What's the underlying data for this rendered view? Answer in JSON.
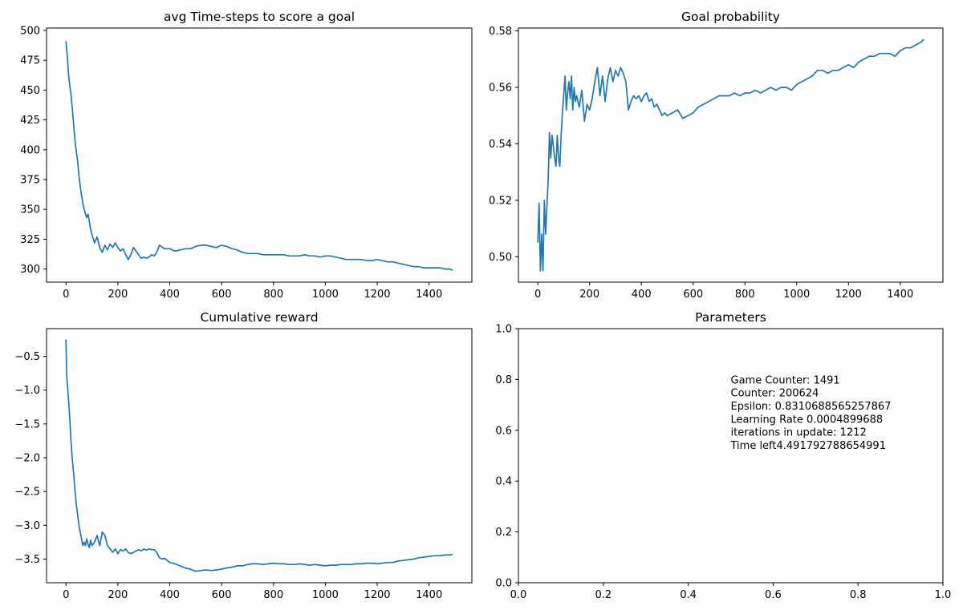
{
  "colors": {
    "series": "#1f77b4",
    "axes": "#000000",
    "background": "#ffffff"
  },
  "chart_data": [
    {
      "type": "line",
      "title": "avg Time-steps to score a goal",
      "xlabel": "",
      "ylabel": "",
      "xlim": [
        -75,
        1565
      ],
      "ylim": [
        289,
        502
      ],
      "xticks": [
        0,
        200,
        400,
        600,
        800,
        1000,
        1200,
        1400
      ],
      "yticks": [
        300,
        325,
        350,
        375,
        400,
        425,
        450,
        475,
        500
      ],
      "grid": false,
      "series": [
        {
          "x": [
            0,
            5,
            10,
            15,
            20,
            25,
            30,
            35,
            40,
            45,
            50,
            55,
            60,
            65,
            70,
            75,
            80,
            85,
            90,
            95,
            100,
            110,
            120,
            130,
            140,
            150,
            160,
            170,
            180,
            190,
            200,
            210,
            220,
            230,
            240,
            250,
            260,
            270,
            280,
            290,
            300,
            310,
            320,
            330,
            340,
            350,
            360,
            380,
            400,
            420,
            440,
            460,
            480,
            500,
            520,
            540,
            560,
            580,
            600,
            620,
            640,
            660,
            680,
            700,
            720,
            740,
            760,
            780,
            800,
            820,
            840,
            860,
            880,
            900,
            920,
            940,
            960,
            980,
            1000,
            1020,
            1040,
            1060,
            1080,
            1100,
            1120,
            1140,
            1160,
            1180,
            1200,
            1220,
            1240,
            1260,
            1280,
            1300,
            1320,
            1340,
            1360,
            1380,
            1400,
            1420,
            1440,
            1460,
            1480,
            1491
          ],
          "y": [
            491,
            478,
            462,
            453,
            445,
            433,
            420,
            407,
            398,
            390,
            378,
            369,
            362,
            355,
            350,
            346,
            343,
            346,
            340,
            333,
            329,
            322,
            327,
            318,
            314,
            320,
            316,
            321,
            318,
            322,
            318,
            315,
            317,
            312,
            308,
            312,
            318,
            315,
            312,
            309,
            310,
            309,
            310,
            312,
            311,
            314,
            320,
            317,
            317,
            315,
            316,
            317,
            317,
            319,
            320,
            320,
            319,
            318,
            320,
            319,
            317,
            316,
            314,
            313,
            313,
            313,
            312,
            312,
            312,
            312,
            312,
            311,
            311,
            311,
            312,
            311,
            311,
            310,
            311,
            311,
            310,
            309,
            308,
            308,
            308,
            308,
            307,
            307,
            308,
            307,
            306,
            306,
            305,
            304,
            303,
            302,
            302,
            301,
            301,
            301,
            301,
            300,
            300,
            299
          ]
        }
      ]
    },
    {
      "type": "line",
      "title": "Goal probability",
      "xlabel": "",
      "ylabel": "",
      "xlim": [
        -75,
        1565
      ],
      "ylim": [
        0.491,
        0.581
      ],
      "xticks": [
        0,
        200,
        400,
        600,
        800,
        1000,
        1200,
        1400
      ],
      "yticks": [
        0.5,
        0.52,
        0.54,
        0.56,
        0.58
      ],
      "ytick_labels": [
        "0.50",
        "0.52",
        "0.54",
        "0.56",
        "0.58"
      ],
      "grid": false,
      "series": [
        {
          "x": [
            0,
            5,
            10,
            15,
            20,
            25,
            30,
            35,
            40,
            45,
            50,
            55,
            60,
            65,
            70,
            75,
            80,
            85,
            90,
            95,
            100,
            105,
            110,
            115,
            120,
            125,
            130,
            135,
            140,
            145,
            150,
            160,
            170,
            180,
            190,
            200,
            210,
            220,
            230,
            240,
            250,
            260,
            270,
            280,
            290,
            300,
            310,
            320,
            330,
            340,
            350,
            360,
            370,
            380,
            390,
            400,
            410,
            420,
            430,
            440,
            450,
            460,
            470,
            480,
            490,
            500,
            520,
            540,
            560,
            580,
            600,
            620,
            640,
            660,
            680,
            700,
            720,
            740,
            760,
            780,
            800,
            820,
            840,
            860,
            880,
            900,
            920,
            940,
            960,
            980,
            1000,
            1020,
            1040,
            1060,
            1080,
            1100,
            1120,
            1140,
            1160,
            1180,
            1200,
            1220,
            1240,
            1260,
            1280,
            1300,
            1320,
            1340,
            1360,
            1380,
            1400,
            1420,
            1440,
            1460,
            1480,
            1491
          ],
          "y": [
            0.505,
            0.519,
            0.495,
            0.508,
            0.495,
            0.52,
            0.508,
            0.518,
            0.527,
            0.544,
            0.535,
            0.543,
            0.539,
            0.535,
            0.532,
            0.543,
            0.535,
            0.532,
            0.543,
            0.551,
            0.557,
            0.564,
            0.552,
            0.558,
            0.562,
            0.556,
            0.564,
            0.552,
            0.56,
            0.555,
            0.557,
            0.553,
            0.559,
            0.548,
            0.554,
            0.552,
            0.556,
            0.562,
            0.567,
            0.557,
            0.564,
            0.555,
            0.563,
            0.567,
            0.562,
            0.566,
            0.564,
            0.567,
            0.565,
            0.562,
            0.552,
            0.555,
            0.557,
            0.556,
            0.557,
            0.555,
            0.557,
            0.558,
            0.555,
            0.556,
            0.553,
            0.554,
            0.552,
            0.55,
            0.551,
            0.55,
            0.551,
            0.552,
            0.549,
            0.55,
            0.551,
            0.553,
            0.554,
            0.555,
            0.556,
            0.557,
            0.557,
            0.557,
            0.558,
            0.557,
            0.558,
            0.558,
            0.559,
            0.558,
            0.559,
            0.56,
            0.559,
            0.56,
            0.56,
            0.559,
            0.561,
            0.562,
            0.563,
            0.564,
            0.566,
            0.566,
            0.565,
            0.566,
            0.566,
            0.567,
            0.568,
            0.567,
            0.569,
            0.57,
            0.571,
            0.571,
            0.572,
            0.572,
            0.572,
            0.571,
            0.573,
            0.574,
            0.574,
            0.575,
            0.576,
            0.577
          ]
        }
      ]
    },
    {
      "type": "line",
      "title": "Cumulative reward",
      "xlabel": "",
      "ylabel": "",
      "xlim": [
        -75,
        1565
      ],
      "ylim": [
        -3.85,
        -0.09
      ],
      "xticks": [
        0,
        200,
        400,
        600,
        800,
        1000,
        1200,
        1400
      ],
      "yticks": [
        -0.5,
        -1.0,
        -1.5,
        -2.0,
        -2.5,
        -3.0,
        -3.5
      ],
      "ytick_labels": [
        "−0.5",
        "−1.0",
        "−1.5",
        "−2.0",
        "−2.5",
        "−3.0",
        "−3.5"
      ],
      "grid": false,
      "series": [
        {
          "x": [
            0,
            3,
            6,
            10,
            15,
            20,
            25,
            30,
            35,
            40,
            45,
            50,
            55,
            60,
            65,
            70,
            75,
            80,
            85,
            90,
            95,
            100,
            110,
            120,
            130,
            140,
            150,
            160,
            170,
            180,
            190,
            200,
            210,
            220,
            230,
            240,
            250,
            260,
            270,
            280,
            290,
            300,
            310,
            320,
            330,
            340,
            350,
            360,
            370,
            380,
            390,
            400,
            420,
            440,
            460,
            480,
            500,
            520,
            540,
            560,
            580,
            600,
            620,
            640,
            660,
            680,
            700,
            720,
            740,
            760,
            780,
            800,
            820,
            840,
            860,
            880,
            900,
            920,
            940,
            960,
            980,
            1000,
            1020,
            1040,
            1060,
            1080,
            1100,
            1120,
            1140,
            1160,
            1180,
            1200,
            1220,
            1240,
            1260,
            1280,
            1300,
            1320,
            1340,
            1360,
            1380,
            1400,
            1420,
            1440,
            1460,
            1480,
            1491
          ],
          "y": [
            -0.25,
            -0.8,
            -0.95,
            -1.15,
            -1.45,
            -1.8,
            -2.05,
            -2.25,
            -2.5,
            -2.7,
            -2.85,
            -3.0,
            -3.1,
            -3.2,
            -3.3,
            -3.25,
            -3.3,
            -3.2,
            -3.28,
            -3.33,
            -3.22,
            -3.3,
            -3.25,
            -3.15,
            -3.3,
            -3.1,
            -3.15,
            -3.3,
            -3.35,
            -3.4,
            -3.35,
            -3.42,
            -3.36,
            -3.38,
            -3.35,
            -3.4,
            -3.42,
            -3.4,
            -3.38,
            -3.36,
            -3.38,
            -3.35,
            -3.37,
            -3.35,
            -3.36,
            -3.36,
            -3.4,
            -3.48,
            -3.5,
            -3.49,
            -3.52,
            -3.55,
            -3.57,
            -3.6,
            -3.63,
            -3.65,
            -3.68,
            -3.67,
            -3.66,
            -3.67,
            -3.66,
            -3.65,
            -3.63,
            -3.62,
            -3.6,
            -3.6,
            -3.58,
            -3.57,
            -3.57,
            -3.58,
            -3.57,
            -3.56,
            -3.57,
            -3.57,
            -3.58,
            -3.58,
            -3.57,
            -3.58,
            -3.59,
            -3.58,
            -3.59,
            -3.6,
            -3.59,
            -3.59,
            -3.58,
            -3.58,
            -3.58,
            -3.57,
            -3.57,
            -3.56,
            -3.56,
            -3.57,
            -3.56,
            -3.55,
            -3.55,
            -3.53,
            -3.52,
            -3.51,
            -3.5,
            -3.48,
            -3.47,
            -3.46,
            -3.45,
            -3.45,
            -3.44,
            -3.44,
            -3.43
          ]
        }
      ]
    },
    {
      "type": "text",
      "title": "Parameters",
      "xlim": [
        0,
        1
      ],
      "ylim": [
        0,
        1
      ],
      "xticks": [
        0.0,
        0.2,
        0.4,
        0.6,
        0.8,
        1.0
      ],
      "xtick_labels": [
        "0.0",
        "0.2",
        "0.4",
        "0.6",
        "0.8",
        "1.0"
      ],
      "yticks": [
        0.0,
        0.2,
        0.4,
        0.6,
        0.8,
        1.0
      ],
      "ytick_labels": [
        "0.0",
        "0.2",
        "0.4",
        "0.6",
        "0.8",
        "1.0"
      ],
      "grid": false,
      "text_anchor": [
        0.5,
        0.8
      ],
      "annotations": [
        "Game Counter: 1491",
        "Counter: 200624",
        "Epsilon: 0.8310688565257867",
        "Learning Rate 0.0004899688",
        "iterations in update: 1212",
        "Time left4.491792788654991"
      ]
    }
  ]
}
